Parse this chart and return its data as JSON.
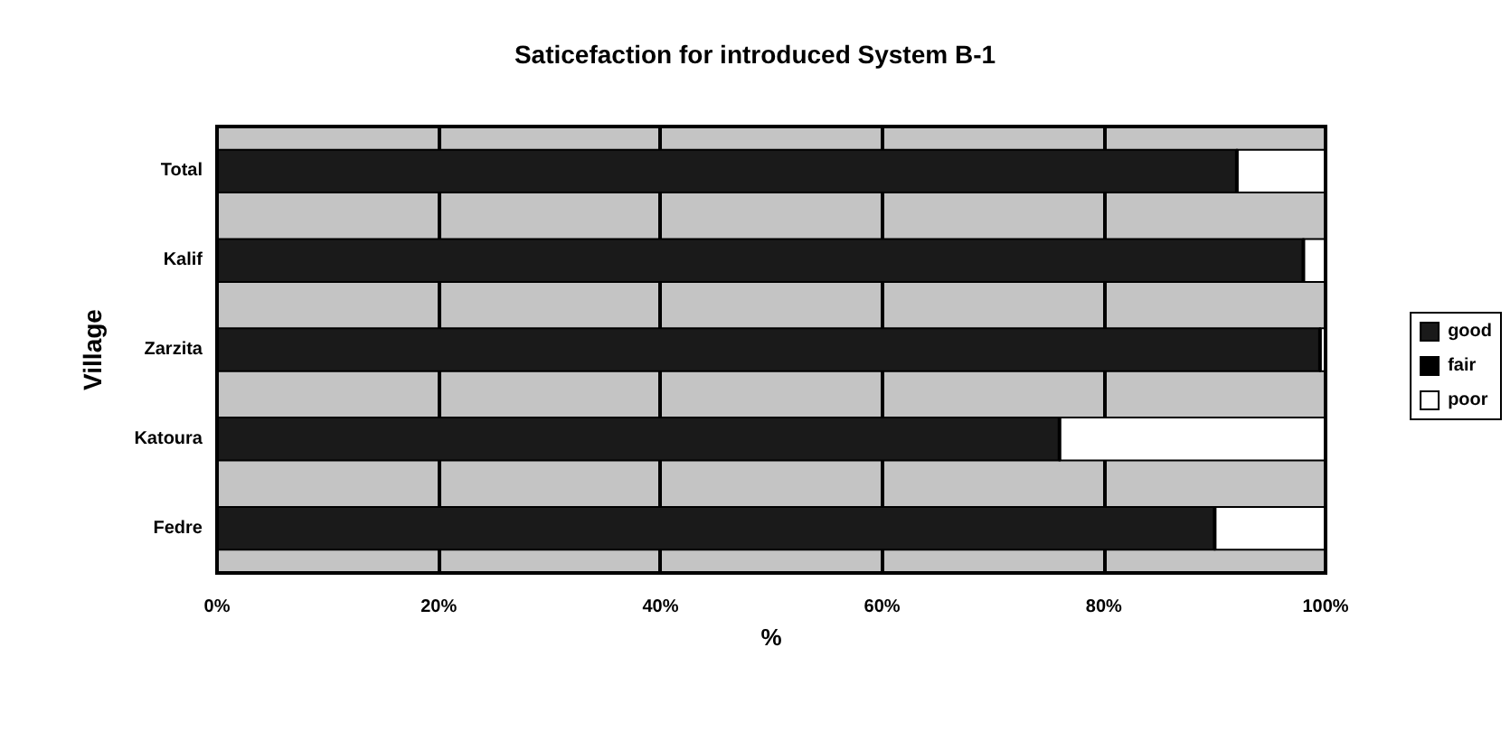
{
  "chart_data": {
    "type": "bar",
    "orientation": "horizontal",
    "stacked": true,
    "title": "Saticefaction for introduced System B-1",
    "xlabel": "%",
    "ylabel": "Village",
    "categories": [
      "Total",
      "Kalif",
      "Zarzita",
      "Katoura",
      "Fedre"
    ],
    "series": [
      {
        "name": "good",
        "color": "#1a1a1a",
        "values": [
          92,
          98,
          99.5,
          76,
          90
        ]
      },
      {
        "name": "fair",
        "color": "#000000",
        "values": [
          0,
          0,
          0,
          0,
          0
        ]
      },
      {
        "name": "poor",
        "color": "#ffffff",
        "values": [
          8,
          2,
          0.5,
          24,
          10
        ]
      }
    ],
    "xlim": [
      0,
      100
    ],
    "xticks": [
      {
        "value": 0,
        "label": "0%"
      },
      {
        "value": 20,
        "label": "20%"
      },
      {
        "value": 40,
        "label": "40%"
      },
      {
        "value": 60,
        "label": "60%"
      },
      {
        "value": 80,
        "label": "80%"
      },
      {
        "value": 100,
        "label": "100%"
      }
    ],
    "grid": "x",
    "legend": "right"
  }
}
